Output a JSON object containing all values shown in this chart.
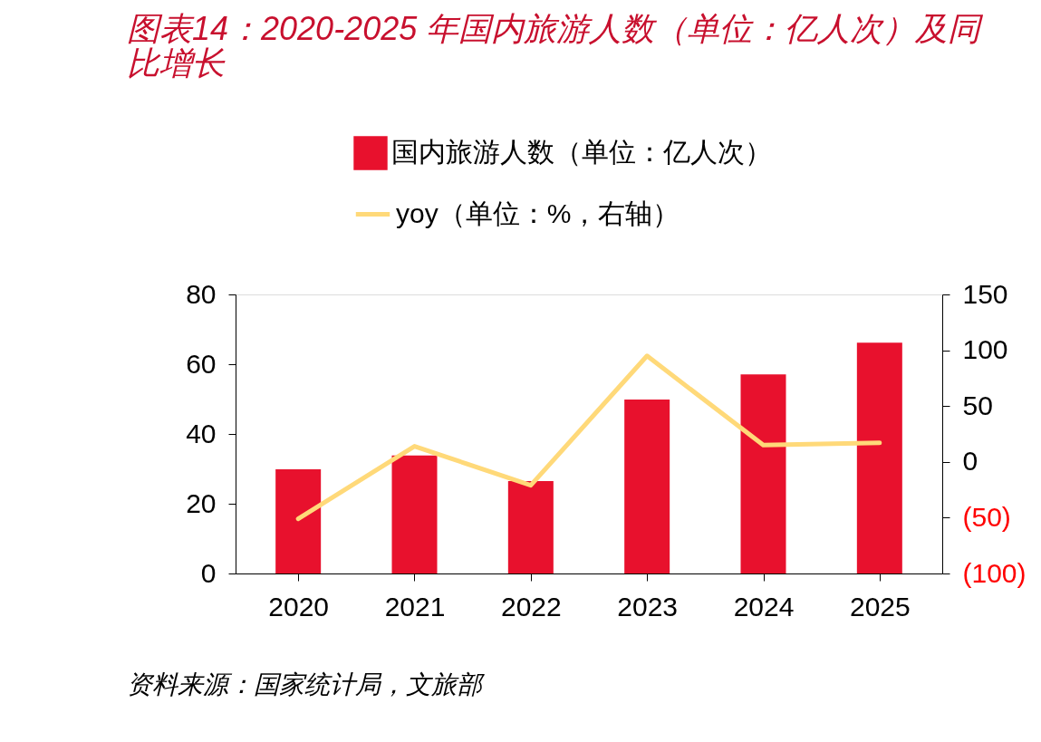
{
  "chart_data": {
    "type": "bar",
    "title": "图表14：2020-2025 年国内旅游人数（单位：亿人次）及同比增长",
    "categories": [
      "2020",
      "2021",
      "2022",
      "2023",
      "2024",
      "2025"
    ],
    "series": [
      {
        "name": "国内旅游人数（单位：亿人次）",
        "color": "#e8112d",
        "values": [
          29.9,
          33.8,
          26.5,
          49.9,
          57.1,
          66.2
        ]
      },
      {
        "name": "yoy（单位：%，右轴）",
        "type": "line",
        "axis": "y2",
        "color": "#ffd979",
        "values": [
          -51,
          14,
          -21,
          95,
          15,
          17
        ]
      }
    ],
    "ylim": [
      0,
      80
    ],
    "yticks": [
      0,
      20,
      40,
      60,
      80
    ],
    "y2lim": [
      -100,
      150
    ],
    "y2ticks": [
      {
        "value": -100,
        "label": "(100)"
      },
      {
        "value": -50,
        "label": "(50)"
      },
      0,
      50,
      100,
      150
    ],
    "grid": false,
    "legend": "top",
    "marker": "none",
    "line_style": "solid",
    "annotations": [
      "资料来源：国家统计局，文旅部"
    ]
  }
}
